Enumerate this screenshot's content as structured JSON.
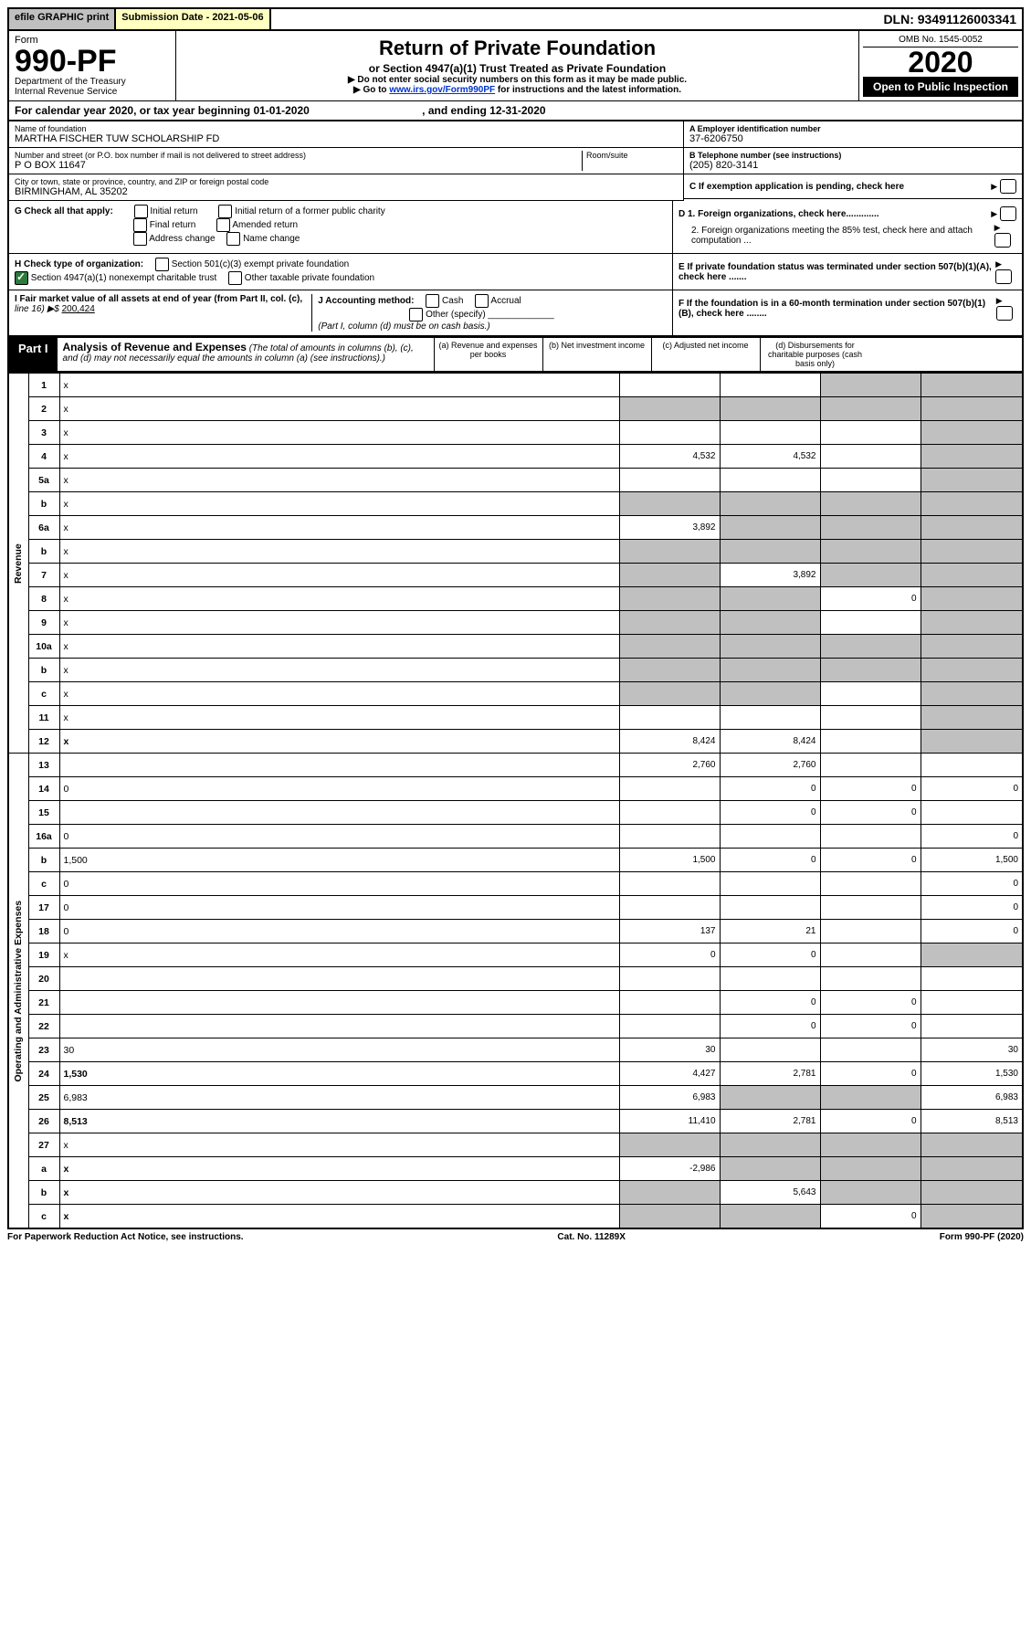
{
  "topbar": {
    "efile": "efile GRAPHIC print",
    "submission": "Submission Date - 2021-05-06",
    "dln": "DLN: 93491126003341"
  },
  "header": {
    "form": "Form",
    "form_num": "990-PF",
    "dept": "Department of the Treasury",
    "irs": "Internal Revenue Service",
    "title": "Return of Private Foundation",
    "subtitle": "or Section 4947(a)(1) Trust Treated as Private Foundation",
    "note1": "▶ Do not enter social security numbers on this form as it may be made public.",
    "note2_pre": "▶ Go to ",
    "note2_link": "www.irs.gov/Form990PF",
    "note2_post": " for instructions and the latest information.",
    "omb": "OMB No. 1545-0052",
    "year": "2020",
    "open": "Open to Public Inspection"
  },
  "cal": {
    "text1": "For calendar year 2020, or tax year beginning 01-01-2020",
    "text2": ", and ending 12-31-2020"
  },
  "info": {
    "name_lbl": "Name of foundation",
    "name": "MARTHA FISCHER TUW SCHOLARSHIP FD",
    "addr_lbl": "Number and street (or P.O. box number if mail is not delivered to street address)",
    "addr": "P O BOX 11647",
    "room_lbl": "Room/suite",
    "city_lbl": "City or town, state or province, country, and ZIP or foreign postal code",
    "city": "BIRMINGHAM, AL  35202",
    "ein_lbl": "A Employer identification number",
    "ein": "37-6206750",
    "phone_lbl": "B Telephone number (see instructions)",
    "phone": "(205) 820-3141",
    "c": "C If exemption application is pending, check here"
  },
  "g": {
    "lbl": "G Check all that apply:",
    "opts": [
      "Initial return",
      "Initial return of a former public charity",
      "Final return",
      "Amended return",
      "Address change",
      "Name change"
    ]
  },
  "h": {
    "lbl": "H Check type of organization:",
    "o1": "Section 501(c)(3) exempt private foundation",
    "o2": "Section 4947(a)(1) nonexempt charitable trust",
    "o3": "Other taxable private foundation"
  },
  "d": {
    "d1": "D 1. Foreign organizations, check here.............",
    "d2": "2. Foreign organizations meeting the 85% test, check here and attach computation ...",
    "e": "E  If private foundation status was terminated under section 507(b)(1)(A), check here .......",
    "f": "F  If the foundation is in a 60-month termination under section 507(b)(1)(B), check here ........"
  },
  "i": {
    "lbl": "I Fair market value of all assets at end of year (from Part II, col. (c),",
    "line16": "line 16) ▶$ ",
    "val": "200,424"
  },
  "j": {
    "lbl": "J Accounting method:",
    "cash": "Cash",
    "accrual": "Accrual",
    "other": "Other (specify)",
    "note": "(Part I, column (d) must be on cash basis.)"
  },
  "part1": {
    "lbl": "Part I",
    "title": "Analysis of Revenue and Expenses",
    "note": " (The total of amounts in columns (b), (c), and (d) may not necessarily equal the amounts in column (a) (see instructions).)",
    "cols": {
      "a": "(a)    Revenue and expenses per books",
      "b": "(b)   Net investment income",
      "c": "(c)   Adjusted net income",
      "d": "(d)   Disbursements for charitable purposes (cash basis only)"
    }
  },
  "rows": [
    {
      "n": "1",
      "d": "x",
      "a": "",
      "b": "",
      "c": "x"
    },
    {
      "n": "2",
      "d": "x",
      "a": "x",
      "b": "x",
      "c": "x",
      "bold": false
    },
    {
      "n": "3",
      "d": "x",
      "a": "",
      "b": "",
      "c": ""
    },
    {
      "n": "4",
      "d": "x",
      "a": "4,532",
      "b": "4,532",
      "c": ""
    },
    {
      "n": "5a",
      "d": "x",
      "a": "",
      "b": "",
      "c": ""
    },
    {
      "n": "b",
      "d": "x",
      "a": "x",
      "b": "x",
      "c": "x"
    },
    {
      "n": "6a",
      "d": "x",
      "a": "3,892",
      "b": "x",
      "c": "x"
    },
    {
      "n": "b",
      "d": "x",
      "a": "x",
      "b": "x",
      "c": "x"
    },
    {
      "n": "7",
      "d": "x",
      "a": "x",
      "b": "3,892",
      "c": "x"
    },
    {
      "n": "8",
      "d": "x",
      "a": "x",
      "b": "x",
      "c": "0"
    },
    {
      "n": "9",
      "d": "x",
      "a": "x",
      "b": "x",
      "c": ""
    },
    {
      "n": "10a",
      "d": "x",
      "a": "x",
      "b": "x",
      "c": "x"
    },
    {
      "n": "b",
      "d": "x",
      "a": "x",
      "b": "x",
      "c": "x"
    },
    {
      "n": "c",
      "d": "x",
      "a": "x",
      "b": "x",
      "c": ""
    },
    {
      "n": "11",
      "d": "x",
      "a": "",
      "b": "",
      "c": ""
    },
    {
      "n": "12",
      "d": "x",
      "a": "8,424",
      "b": "8,424",
      "c": "",
      "bold": true
    },
    {
      "n": "13",
      "d": "",
      "a": "2,760",
      "b": "2,760",
      "c": ""
    },
    {
      "n": "14",
      "d": "0",
      "a": "",
      "b": "0",
      "c": "0"
    },
    {
      "n": "15",
      "d": "",
      "a": "",
      "b": "0",
      "c": "0"
    },
    {
      "n": "16a",
      "d": "0",
      "a": "",
      "b": "",
      "c": ""
    },
    {
      "n": "b",
      "d": "1,500",
      "a": "1,500",
      "b": "0",
      "c": "0"
    },
    {
      "n": "c",
      "d": "0",
      "a": "",
      "b": "",
      "c": ""
    },
    {
      "n": "17",
      "d": "0",
      "a": "",
      "b": "",
      "c": ""
    },
    {
      "n": "18",
      "d": "0",
      "a": "137",
      "b": "21",
      "c": ""
    },
    {
      "n": "19",
      "d": "x",
      "a": "0",
      "b": "0",
      "c": ""
    },
    {
      "n": "20",
      "d": "",
      "a": "",
      "b": "",
      "c": ""
    },
    {
      "n": "21",
      "d": "",
      "a": "",
      "b": "0",
      "c": "0"
    },
    {
      "n": "22",
      "d": "",
      "a": "",
      "b": "0",
      "c": "0"
    },
    {
      "n": "23",
      "d": "30",
      "a": "30",
      "b": "",
      "c": ""
    },
    {
      "n": "24",
      "d": "1,530",
      "a": "4,427",
      "b": "2,781",
      "c": "0",
      "bold": true
    },
    {
      "n": "25",
      "d": "6,983",
      "a": "6,983",
      "b": "x",
      "c": "x"
    },
    {
      "n": "26",
      "d": "8,513",
      "a": "11,410",
      "b": "2,781",
      "c": "0",
      "bold": true
    },
    {
      "n": "27",
      "d": "x",
      "a": "x",
      "b": "x",
      "c": "x"
    },
    {
      "n": "a",
      "d": "x",
      "a": "-2,986",
      "b": "x",
      "c": "x",
      "bold": true
    },
    {
      "n": "b",
      "d": "x",
      "a": "x",
      "b": "5,643",
      "c": "x",
      "bold": true
    },
    {
      "n": "c",
      "d": "x",
      "a": "x",
      "b": "x",
      "c": "0",
      "bold": true
    }
  ],
  "sections": {
    "rev": "Revenue",
    "exp": "Operating and Administrative Expenses"
  },
  "footer": {
    "left": "For Paperwork Reduction Act Notice, see instructions.",
    "mid": "Cat. No. 11289X",
    "right": "Form 990-PF (2020)"
  }
}
